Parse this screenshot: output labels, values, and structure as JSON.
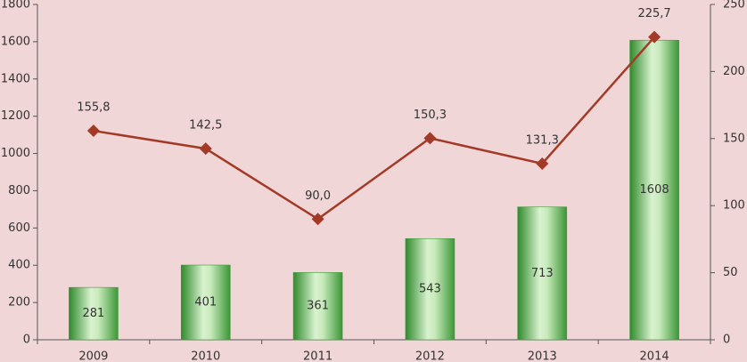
{
  "chart_data": {
    "type": "bar_line",
    "categories": [
      "2009",
      "2010",
      "2011",
      "2012",
      "2013",
      "2014"
    ],
    "series": [
      {
        "type": "bar",
        "color": "#3f9a3a",
        "values": [
          281,
          401,
          361,
          543,
          713,
          1608
        ]
      },
      {
        "type": "line",
        "axis": "y2",
        "color": "#a33a28",
        "values": [
          155.8,
          142.5,
          90.0,
          150.3,
          131.3,
          225.7
        ],
        "value_labels": [
          "155,8",
          "142,5",
          "90,0",
          "150,3",
          "131,3",
          "225,7"
        ]
      }
    ],
    "ylim": [
      0,
      1800
    ],
    "yticks": [
      0,
      200,
      400,
      600,
      800,
      1000,
      1200,
      1400,
      1600,
      1800
    ],
    "y2lim": [
      0,
      250
    ],
    "y2ticks": [
      0,
      50,
      100,
      150,
      200,
      250
    ],
    "grid": false
  }
}
